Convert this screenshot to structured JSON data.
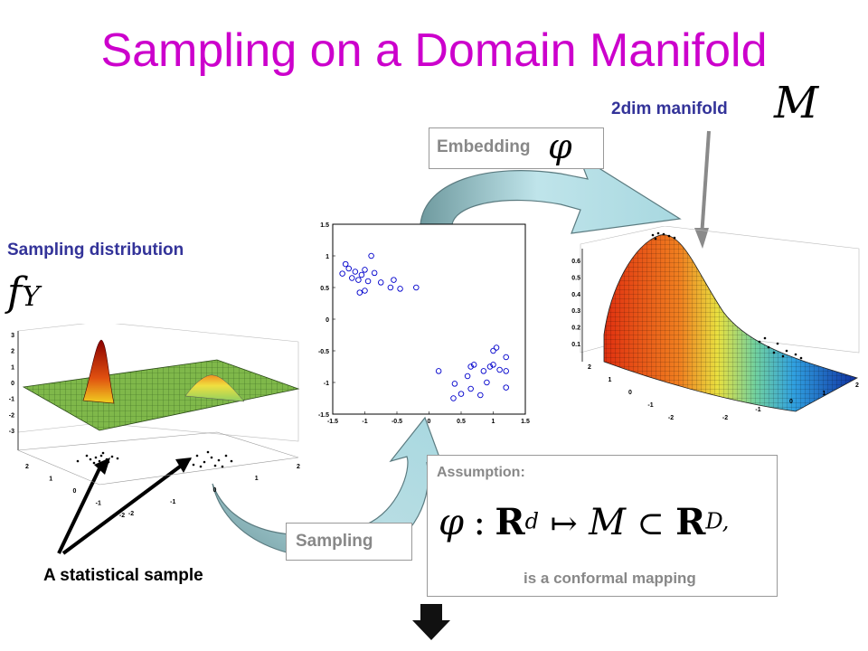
{
  "slide": {
    "title": "Sampling on a Domain Manifold",
    "manifold_label": "2dim manifold",
    "manifold_symbol": "M",
    "embedding_label": "Embedding",
    "phi": "φ",
    "sampling_distribution_label": "Sampling distribution",
    "f_letter": "f",
    "f_sub": "Y",
    "sampling_label": "Sampling",
    "sample_label": "A statistical sample",
    "assumption_title": "Assumption:",
    "formula": {
      "phi": "φ",
      "colon": ":",
      "R": "R",
      "d": "d",
      "mapsto": "↦",
      "M": "M",
      "subset": "⊂",
      "D": "D,"
    },
    "conformal_text": "is a conformal mapping",
    "colors": {
      "title": "#cc00cc",
      "navy": "#333399",
      "arrow": "#a8d8e0",
      "label_gray": "#888888"
    }
  },
  "scatter_plot": {
    "x_ticks": [
      "-1.5",
      "-1",
      "-0.5",
      "0",
      "0.5",
      "1",
      "1.5"
    ],
    "y_ticks": [
      "1.5",
      "1",
      "0.5",
      "0",
      "-0.5",
      "-1",
      "-1.5"
    ],
    "xlim": [
      -1.5,
      1.5
    ],
    "ylim": [
      -1.5,
      1.5
    ],
    "points": [
      [
        -1.3,
        0.87
      ],
      [
        -1.25,
        0.8
      ],
      [
        -1.15,
        0.75
      ],
      [
        -1.0,
        0.78
      ],
      [
        -1.05,
        0.7
      ],
      [
        -0.85,
        0.73
      ],
      [
        -1.35,
        0.72
      ],
      [
        -1.2,
        0.65
      ],
      [
        -1.1,
        0.62
      ],
      [
        -0.95,
        0.6
      ],
      [
        -0.75,
        0.58
      ],
      [
        -0.55,
        0.62
      ],
      [
        -0.6,
        0.5
      ],
      [
        -0.2,
        0.5
      ],
      [
        -1.0,
        0.45
      ],
      [
        -1.08,
        0.42
      ],
      [
        -0.45,
        0.48
      ],
      [
        -0.9,
        1.0
      ],
      [
        1.05,
        -0.45
      ],
      [
        1.2,
        -0.6
      ],
      [
        1.0,
        -0.72
      ],
      [
        0.95,
        -0.75
      ],
      [
        0.7,
        -0.72
      ],
      [
        0.65,
        -0.75
      ],
      [
        0.85,
        -0.82
      ],
      [
        1.1,
        -0.8
      ],
      [
        1.2,
        -0.82
      ],
      [
        0.15,
        -0.82
      ],
      [
        0.6,
        -0.9
      ],
      [
        0.9,
        -1.0
      ],
      [
        0.4,
        -1.02
      ],
      [
        0.65,
        -1.1
      ],
      [
        1.2,
        -1.08
      ],
      [
        0.5,
        -1.18
      ],
      [
        0.8,
        -1.2
      ],
      [
        0.38,
        -1.25
      ],
      [
        1.0,
        -0.5
      ]
    ]
  },
  "left_surface": {
    "z_ticks": [
      "3",
      "2",
      "1",
      "0",
      "-1",
      "-2",
      "-3"
    ],
    "x_ticks": [
      "2",
      "1",
      "0",
      "-1",
      "-2"
    ],
    "y_ticks": [
      "-2",
      "-1",
      "0",
      "1",
      "2"
    ]
  },
  "right_surface": {
    "z_ticks": [
      "0.6",
      "0.5",
      "0.4",
      "0.3",
      "0.2",
      "0.1"
    ],
    "x_ticks": [
      "2",
      "1",
      "0",
      "-1",
      "-2"
    ],
    "y_ticks": [
      "-2",
      "-1",
      "0",
      "1",
      "2"
    ]
  }
}
